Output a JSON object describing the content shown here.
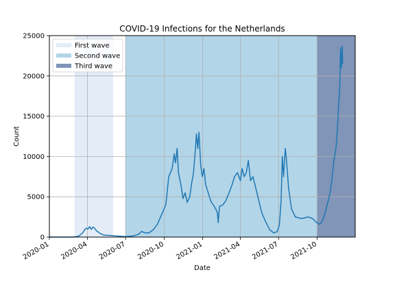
{
  "chart_data": {
    "type": "line",
    "title": "COVID-19 Infections for the Netherlands",
    "xlabel": "Date",
    "ylabel": "Count",
    "xlim": [
      "2020-01-01",
      "2021-12-31"
    ],
    "ylim": [
      0,
      25000
    ],
    "x_ticks": [
      "2020-01",
      "2020-04",
      "2020-07",
      "2020-10",
      "2021-01",
      "2021-04",
      "2021-07",
      "2021-10"
    ],
    "y_ticks": [
      0,
      5000,
      10000,
      15000,
      20000,
      25000
    ],
    "grid": true,
    "legend_position": "upper-left",
    "series": [
      {
        "color": "#1f77b4",
        "points": [
          [
            "2020-01-01",
            0
          ],
          [
            "2020-02-25",
            0
          ],
          [
            "2020-03-05",
            50
          ],
          [
            "2020-03-12",
            150
          ],
          [
            "2020-03-20",
            500
          ],
          [
            "2020-03-28",
            1100
          ],
          [
            "2020-04-02",
            1000
          ],
          [
            "2020-04-06",
            1300
          ],
          [
            "2020-04-10",
            950
          ],
          [
            "2020-04-14",
            1250
          ],
          [
            "2020-04-18",
            1100
          ],
          [
            "2020-04-22",
            800
          ],
          [
            "2020-05-01",
            450
          ],
          [
            "2020-05-10",
            250
          ],
          [
            "2020-05-25",
            200
          ],
          [
            "2020-06-15",
            120
          ],
          [
            "2020-07-01",
            60
          ],
          [
            "2020-07-20",
            150
          ],
          [
            "2020-08-01",
            350
          ],
          [
            "2020-08-08",
            700
          ],
          [
            "2020-08-15",
            550
          ],
          [
            "2020-08-25",
            500
          ],
          [
            "2020-09-05",
            900
          ],
          [
            "2020-09-15",
            1600
          ],
          [
            "2020-09-25",
            2800
          ],
          [
            "2020-10-05",
            4000
          ],
          [
            "2020-10-12",
            7500
          ],
          [
            "2020-10-20",
            8500
          ],
          [
            "2020-10-25",
            10300
          ],
          [
            "2020-10-28",
            9200
          ],
          [
            "2020-11-01",
            11000
          ],
          [
            "2020-11-04",
            8000
          ],
          [
            "2020-11-10",
            6500
          ],
          [
            "2020-11-15",
            4800
          ],
          [
            "2020-11-20",
            5500
          ],
          [
            "2020-11-25",
            4300
          ],
          [
            "2020-12-01",
            5000
          ],
          [
            "2020-12-05",
            6500
          ],
          [
            "2020-12-10",
            8000
          ],
          [
            "2020-12-14",
            10500
          ],
          [
            "2020-12-17",
            12800
          ],
          [
            "2020-12-20",
            11000
          ],
          [
            "2020-12-23",
            13000
          ],
          [
            "2020-12-27",
            9000
          ],
          [
            "2020-12-31",
            7500
          ],
          [
            "2021-01-04",
            8500
          ],
          [
            "2021-01-08",
            6500
          ],
          [
            "2021-01-14",
            5500
          ],
          [
            "2021-01-20",
            4500
          ],
          [
            "2021-01-26",
            4000
          ],
          [
            "2021-02-01",
            3500
          ],
          [
            "2021-02-05",
            3000
          ],
          [
            "2021-02-07",
            1800
          ],
          [
            "2021-02-10",
            3800
          ],
          [
            "2021-02-18",
            4000
          ],
          [
            "2021-02-25",
            4500
          ],
          [
            "2021-03-05",
            5500
          ],
          [
            "2021-03-12",
            6500
          ],
          [
            "2021-03-18",
            7500
          ],
          [
            "2021-03-25",
            8000
          ],
          [
            "2021-04-01",
            7000
          ],
          [
            "2021-04-05",
            8500
          ],
          [
            "2021-04-10",
            7500
          ],
          [
            "2021-04-15",
            8000
          ],
          [
            "2021-04-20",
            9500
          ],
          [
            "2021-04-25",
            7000
          ],
          [
            "2021-05-01",
            7500
          ],
          [
            "2021-05-08",
            6000
          ],
          [
            "2021-05-15",
            4500
          ],
          [
            "2021-05-22",
            3000
          ],
          [
            "2021-06-01",
            1800
          ],
          [
            "2021-06-10",
            900
          ],
          [
            "2021-06-20",
            500
          ],
          [
            "2021-06-28",
            700
          ],
          [
            "2021-07-03",
            1500
          ],
          [
            "2021-07-07",
            4500
          ],
          [
            "2021-07-10",
            10000
          ],
          [
            "2021-07-13",
            7500
          ],
          [
            "2021-07-17",
            11000
          ],
          [
            "2021-07-20",
            9500
          ],
          [
            "2021-07-25",
            6000
          ],
          [
            "2021-08-01",
            3500
          ],
          [
            "2021-08-10",
            2500
          ],
          [
            "2021-08-25",
            2300
          ],
          [
            "2021-09-10",
            2500
          ],
          [
            "2021-09-20",
            2300
          ],
          [
            "2021-09-30",
            1800
          ],
          [
            "2021-10-06",
            1600
          ],
          [
            "2021-10-10",
            1700
          ],
          [
            "2021-10-15",
            2200
          ],
          [
            "2021-10-20",
            3000
          ],
          [
            "2021-10-25",
            4000
          ],
          [
            "2021-11-01",
            5500
          ],
          [
            "2021-11-05",
            7000
          ],
          [
            "2021-11-10",
            9500
          ],
          [
            "2021-11-15",
            11000
          ],
          [
            "2021-11-18",
            13000
          ],
          [
            "2021-11-21",
            16000
          ],
          [
            "2021-11-24",
            18500
          ],
          [
            "2021-11-26",
            23500
          ],
          [
            "2021-11-28",
            21000
          ],
          [
            "2021-11-30",
            23700
          ],
          [
            "2021-12-01",
            21500
          ]
        ]
      }
    ],
    "bands": [
      {
        "label": "First wave",
        "start": "2020-03-01",
        "end": "2020-06-01",
        "color": "#e3ecf7"
      },
      {
        "label": "Second wave",
        "start": "2020-07-01",
        "end": "2021-10-01",
        "color": "#b2d5e8"
      },
      {
        "label": "Third wave",
        "start": "2021-10-01",
        "end": "2021-12-31",
        "color": "#8095b8"
      }
    ],
    "colors": {
      "line": "#1f77b4",
      "grid": "#b0b0b0"
    }
  }
}
